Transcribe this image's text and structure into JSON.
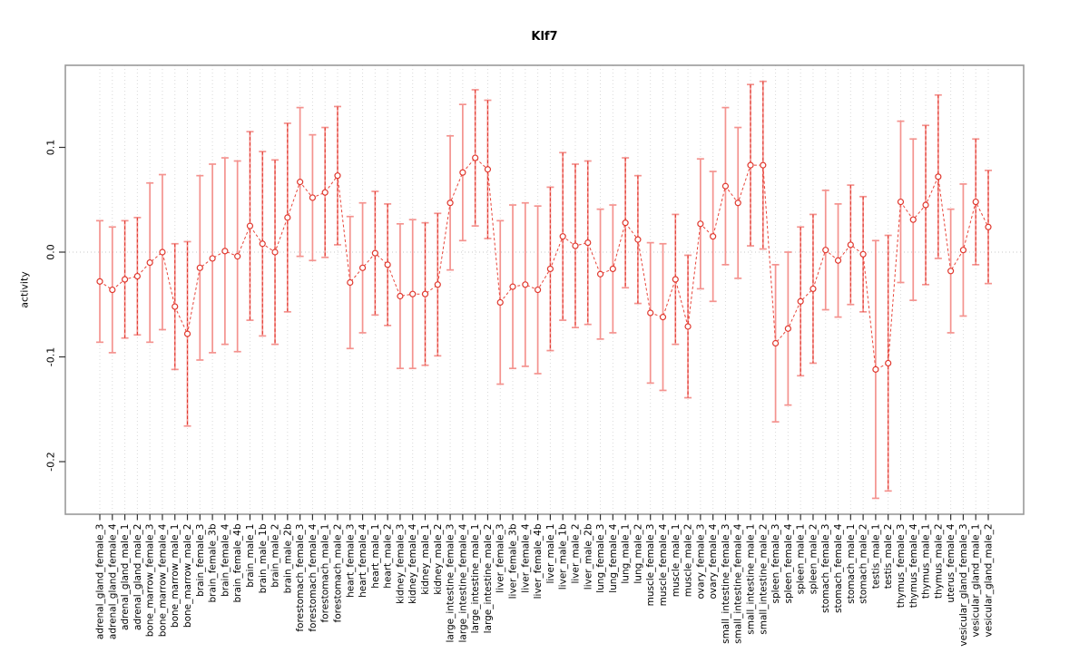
{
  "title": "Klf7",
  "chart_data": {
    "type": "scatter",
    "subtype": "points-with-error-bars-connected-by-dashed-line",
    "title": "Klf7",
    "xlabel": "",
    "ylabel": "activity",
    "ylim": [
      -0.251,
      0.179
    ],
    "y_ticks": [
      0.1,
      0.0,
      -0.1,
      -0.2
    ],
    "y_tick_labels": [
      "0.1",
      "0.0",
      "-0.1",
      "-0.2"
    ],
    "grid": "vertical dotted gridline at every category; dotted horizontal line at y=0",
    "legend_position": "none",
    "colors": {
      "bar_light": "#f4938f",
      "bar_dark_dashed": "#e0382e",
      "point_stroke": "#e0382e",
      "connect_line": "#e8453a",
      "gridline": "#d9d9d9",
      "zero_line": "#c8c8c8",
      "box_border": "#9a9a9a",
      "axis_tick": "#333333",
      "text": "#000000"
    },
    "categories": [
      "adrenal_gland_female_3",
      "adrenal_gland_female_4",
      "adrenal_gland_male_1",
      "adrenal_gland_male_2",
      "bone_marrow_female_3",
      "bone_marrow_female_4",
      "bone_marrow_male_1",
      "bone_marrow_male_2",
      "brain_female_3",
      "brain_female_3b",
      "brain_female_4",
      "brain_female_4b",
      "brain_male_1",
      "brain_male_1b",
      "brain_male_2",
      "brain_male_2b",
      "forestomach_female_3",
      "forestomach_female_4",
      "forestomach_male_1",
      "forestomach_male_2",
      "heart_female_3",
      "heart_female_4",
      "heart_male_1",
      "heart_male_2",
      "kidney_female_3",
      "kidney_female_4",
      "kidney_male_1",
      "kidney_male_2",
      "large_intestine_female_3",
      "large_intestine_female_4",
      "large_intestine_male_1",
      "large_intestine_male_2",
      "liver_female_3",
      "liver_female_3b",
      "liver_female_4",
      "liver_female_4b",
      "liver_male_1",
      "liver_male_1b",
      "liver_male_2",
      "liver_male_2b",
      "lung_female_3",
      "lung_female_4",
      "lung_male_1",
      "lung_male_2",
      "muscle_female_3",
      "muscle_female_4",
      "muscle_male_1",
      "muscle_male_2",
      "ovary_female_3",
      "ovary_female_4",
      "small_intestine_female_3",
      "small_intestine_female_4",
      "small_intestine_male_1",
      "small_intestine_male_2",
      "spleen_female_3",
      "spleen_female_4",
      "spleen_male_1",
      "spleen_male_2",
      "stomach_female_3",
      "stomach_female_4",
      "stomach_male_1",
      "stomach_male_2",
      "testis_male_1",
      "testis_male_2",
      "thymus_female_3",
      "thymus_female_4",
      "thymus_male_1",
      "thymus_male_2",
      "uterus_female_4",
      "vesicular_gland_female_3",
      "vesicular_gland_male_1",
      "vesicular_gland_male_2"
    ],
    "series": [
      {
        "name": "activity",
        "values": [
          -0.028,
          -0.036,
          -0.026,
          -0.023,
          -0.01,
          0.0,
          -0.052,
          -0.078,
          -0.015,
          -0.006,
          0.001,
          -0.004,
          0.025,
          0.008,
          0.0,
          0.033,
          0.067,
          0.052,
          0.057,
          0.073,
          -0.029,
          -0.015,
          -0.001,
          -0.012,
          -0.042,
          -0.04,
          -0.04,
          -0.031,
          0.047,
          0.076,
          0.09,
          0.079,
          -0.048,
          -0.033,
          -0.031,
          -0.036,
          -0.016,
          0.015,
          0.006,
          0.009,
          -0.021,
          -0.016,
          0.028,
          0.012,
          -0.058,
          -0.062,
          -0.026,
          -0.071,
          0.027,
          0.015,
          0.063,
          0.047,
          0.083,
          0.083,
          -0.087,
          -0.073,
          -0.047,
          -0.035,
          0.002,
          -0.008,
          0.007,
          -0.002,
          -0.112,
          -0.106,
          0.048,
          0.031,
          0.045,
          0.072,
          -0.018,
          0.002,
          0.048,
          0.024
        ],
        "errors": [
          0.058,
          0.06,
          0.056,
          0.056,
          0.076,
          0.074,
          0.06,
          0.088,
          0.088,
          0.09,
          0.089,
          0.091,
          0.09,
          0.088,
          0.088,
          0.09,
          0.071,
          0.06,
          0.062,
          0.066,
          0.063,
          0.062,
          0.059,
          0.058,
          0.069,
          0.071,
          0.068,
          0.068,
          0.064,
          0.065,
          0.065,
          0.066,
          0.078,
          0.078,
          0.078,
          0.08,
          0.078,
          0.08,
          0.078,
          0.078,
          0.062,
          0.061,
          0.062,
          0.061,
          0.067,
          0.07,
          0.062,
          0.068,
          0.062,
          0.062,
          0.075,
          0.072,
          0.077,
          0.08,
          0.075,
          0.073,
          0.071,
          0.071,
          0.057,
          0.054,
          0.057,
          0.055,
          0.123,
          0.122,
          0.077,
          0.077,
          0.076,
          0.078,
          0.059,
          0.063,
          0.06,
          0.054
        ],
        "bar_styles": [
          "solid",
          "solid",
          "dashed",
          "dashed",
          "solid",
          "solid",
          "dashed",
          "dashed",
          "solid",
          "solid",
          "solid",
          "solid",
          "dashed",
          "dashed",
          "dashed",
          "dashed",
          "solid",
          "solid",
          "dashed",
          "dashed",
          "solid",
          "solid",
          "dashed",
          "dashed",
          "solid",
          "solid",
          "dashed",
          "dashed",
          "solid",
          "solid",
          "dashed",
          "dashed",
          "solid",
          "solid",
          "solid",
          "solid",
          "dashed",
          "dashed",
          "dashed",
          "dashed",
          "solid",
          "solid",
          "dashed",
          "dashed",
          "solid",
          "solid",
          "dashed",
          "dashed",
          "solid",
          "solid",
          "solid",
          "solid",
          "dashed",
          "dashed",
          "solid",
          "solid",
          "dashed",
          "dashed",
          "solid",
          "solid",
          "dashed",
          "dashed",
          "solid",
          "dashed",
          "solid",
          "solid",
          "dashed",
          "dashed",
          "solid",
          "solid",
          "dashed",
          "dashed"
        ]
      }
    ]
  }
}
